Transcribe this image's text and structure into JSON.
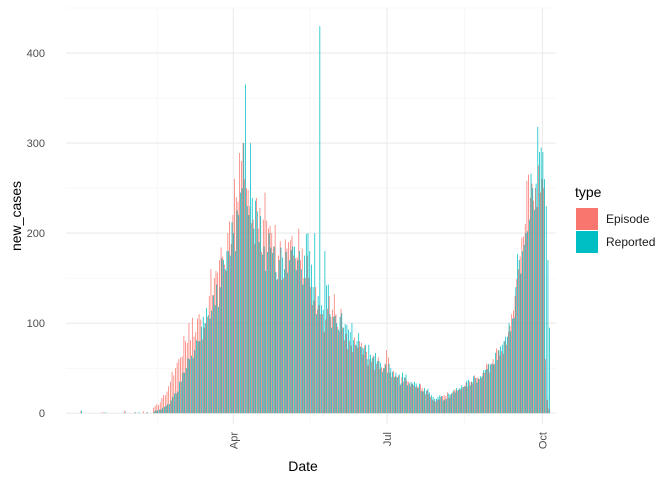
{
  "chart_data": {
    "type": "bar",
    "xlabel": "Date",
    "ylabel": "new_cases",
    "x_unit": "day of year 2020",
    "xlim": [
      -8,
      282
    ],
    "ylim": [
      -12,
      450
    ],
    "grid": true,
    "x_ticks": [
      {
        "day": 91,
        "label": "Apr"
      },
      {
        "day": 182,
        "label": "Jul"
      },
      {
        "day": 274,
        "label": "Oct"
      }
    ],
    "y_ticks": [
      {
        "value": 0,
        "label": "0"
      },
      {
        "value": 100,
        "label": "100"
      },
      {
        "value": 200,
        "label": "200"
      },
      {
        "value": 300,
        "label": "300"
      },
      {
        "value": 400,
        "label": "400"
      }
    ],
    "legend": {
      "title": "type",
      "position": "right",
      "entries": [
        {
          "label": "Episode",
          "color": "#F8766D"
        },
        {
          "label": "Reported",
          "color": "#00BFC4"
        }
      ]
    },
    "anchors": [
      [
        0,
        0,
        0
      ],
      [
        1,
        2,
        3
      ],
      [
        3,
        0,
        0
      ],
      [
        14,
        1,
        0
      ],
      [
        15,
        0,
        1
      ],
      [
        27,
        3,
        1
      ],
      [
        28,
        0,
        0
      ],
      [
        33,
        1,
        1
      ],
      [
        35,
        0,
        1
      ],
      [
        38,
        2,
        0
      ],
      [
        40,
        1,
        1
      ],
      [
        44,
        6,
        2
      ],
      [
        48,
        12,
        4
      ],
      [
        51,
        20,
        8
      ],
      [
        54,
        35,
        14
      ],
      [
        57,
        50,
        22
      ],
      [
        60,
        62,
        35
      ],
      [
        63,
        80,
        50
      ],
      [
        65,
        100,
        60
      ],
      [
        68,
        85,
        70
      ],
      [
        71,
        110,
        80
      ],
      [
        74,
        95,
        100
      ],
      [
        77,
        130,
        105
      ],
      [
        80,
        150,
        120
      ],
      [
        83,
        170,
        140
      ],
      [
        86,
        165,
        160
      ],
      [
        88,
        200,
        180
      ],
      [
        91,
        220,
        200
      ],
      [
        94,
        235,
        220
      ],
      [
        96,
        280,
        250
      ],
      [
        97,
        300,
        300
      ],
      [
        98,
        260,
        365
      ],
      [
        99,
        250,
        230
      ],
      [
        101,
        230,
        300
      ],
      [
        103,
        215,
        205
      ],
      [
        106,
        205,
        190
      ],
      [
        109,
        215,
        185
      ],
      [
        112,
        205,
        200
      ],
      [
        115,
        185,
        185
      ],
      [
        118,
        175,
        170
      ],
      [
        121,
        150,
        160
      ],
      [
        124,
        190,
        170
      ],
      [
        127,
        175,
        185
      ],
      [
        130,
        205,
        180
      ],
      [
        131,
        170,
        160
      ],
      [
        133,
        150,
        175
      ],
      [
        135,
        175,
        200
      ],
      [
        136,
        150,
        180
      ],
      [
        137,
        140,
        165
      ],
      [
        138,
        120,
        140
      ],
      [
        139,
        125,
        200
      ],
      [
        140,
        140,
        110
      ],
      [
        141,
        115,
        130
      ],
      [
        142,
        120,
        430
      ],
      [
        143,
        110,
        120
      ],
      [
        144,
        110,
        115
      ],
      [
        145,
        90,
        180
      ],
      [
        148,
        130,
        110
      ],
      [
        152,
        110,
        100
      ],
      [
        156,
        95,
        95
      ],
      [
        160,
        80,
        90
      ],
      [
        164,
        75,
        80
      ],
      [
        168,
        65,
        72
      ],
      [
        172,
        60,
        65
      ],
      [
        176,
        55,
        58
      ],
      [
        180,
        50,
        50
      ],
      [
        182,
        70,
        45
      ],
      [
        184,
        45,
        50
      ],
      [
        188,
        40,
        40
      ],
      [
        192,
        35,
        40
      ],
      [
        196,
        30,
        35
      ],
      [
        200,
        30,
        28
      ],
      [
        204,
        25,
        28
      ],
      [
        208,
        18,
        20
      ],
      [
        212,
        15,
        18
      ],
      [
        216,
        20,
        15
      ],
      [
        220,
        20,
        22
      ],
      [
        224,
        25,
        26
      ],
      [
        228,
        30,
        30
      ],
      [
        232,
        35,
        35
      ],
      [
        236,
        40,
        38
      ],
      [
        240,
        45,
        48
      ],
      [
        244,
        55,
        55
      ],
      [
        248,
        70,
        70
      ],
      [
        252,
        80,
        85
      ],
      [
        254,
        90,
        100
      ],
      [
        256,
        110,
        105
      ],
      [
        258,
        130,
        140
      ],
      [
        260,
        160,
        170
      ],
      [
        262,
        195,
        180
      ],
      [
        264,
        210,
        200
      ],
      [
        266,
        265,
        215
      ],
      [
        268,
        255,
        250
      ],
      [
        270,
        250,
        255
      ],
      [
        272,
        275,
        290
      ],
      [
        273,
        245,
        295
      ],
      [
        274,
        260,
        290
      ],
      [
        275,
        250,
        260
      ],
      [
        276,
        60,
        230
      ],
      [
        277,
        15,
        170
      ],
      [
        278,
        5,
        95
      ]
    ]
  }
}
